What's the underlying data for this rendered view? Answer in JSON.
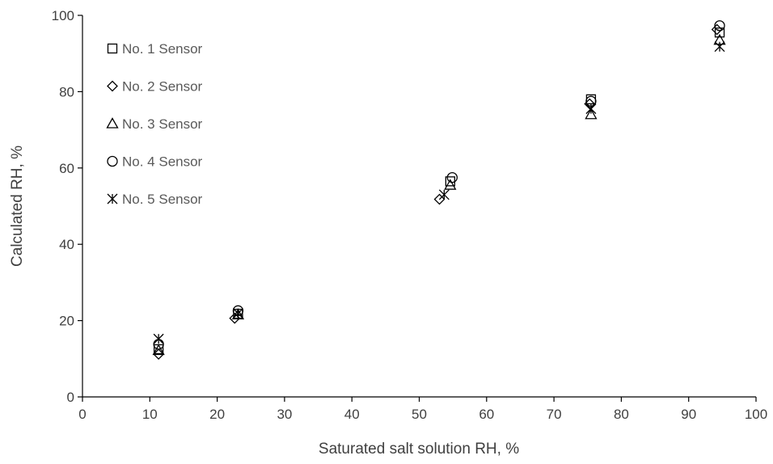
{
  "chart_data": {
    "type": "scatter",
    "title": "",
    "xlabel": "Saturated salt solution RH, %",
    "ylabel": "Calculated RH, %",
    "xlim": [
      0,
      100
    ],
    "ylim": [
      0,
      100
    ],
    "xticks": [
      0,
      10,
      20,
      30,
      40,
      50,
      60,
      70,
      80,
      90,
      100
    ],
    "yticks": [
      0,
      20,
      40,
      60,
      80,
      100
    ],
    "grid": false,
    "legend_position": "top-left",
    "series": [
      {
        "name": "No. 1 Sensor",
        "marker": "square",
        "x": [
          11.3,
          23.1,
          54.6,
          75.5,
          94.6
        ],
        "y": [
          12.5,
          21.8,
          56.5,
          78.0,
          95.5
        ]
      },
      {
        "name": "No. 2 Sensor",
        "marker": "diamond",
        "x": [
          11.3,
          22.6,
          53.0,
          75.3,
          94.2
        ],
        "y": [
          11.2,
          20.6,
          51.8,
          76.8,
          96.3
        ]
      },
      {
        "name": "No. 3 Sensor",
        "marker": "triangle",
        "x": [
          11.3,
          23.1,
          54.6,
          75.5,
          94.6
        ],
        "y": [
          12.2,
          21.5,
          55.5,
          74.0,
          93.5
        ]
      },
      {
        "name": "No. 4 Sensor",
        "marker": "circle",
        "x": [
          11.3,
          23.1,
          54.9,
          75.5,
          94.6
        ],
        "y": [
          13.8,
          22.6,
          57.5,
          77.5,
          97.3
        ]
      },
      {
        "name": "No. 5 Sensor",
        "marker": "asterisk",
        "x": [
          11.3,
          23.1,
          53.7,
          75.5,
          94.6
        ],
        "y": [
          15.2,
          21.9,
          53.0,
          75.5,
          91.8
        ]
      }
    ]
  }
}
